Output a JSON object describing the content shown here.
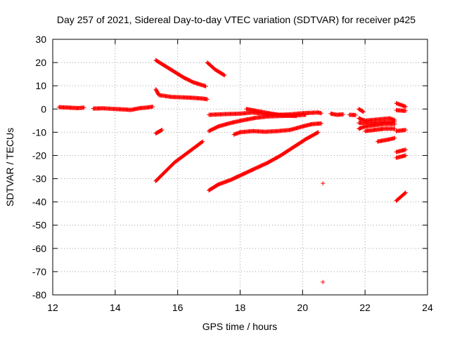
{
  "chart_data": {
    "type": "scatter",
    "title": "Day 257 of 2021, Sidereal Day-to-day VTEC variation (SDTVAR) for receiver p425",
    "xlabel": "GPS time / hours",
    "ylabel": "SDTVAR / TECUs",
    "xlim": [
      12,
      24
    ],
    "ylim": [
      -80,
      30
    ],
    "x_ticks": [
      12,
      14,
      16,
      18,
      20,
      22,
      24
    ],
    "y_ticks": [
      30,
      20,
      10,
      0,
      -10,
      -20,
      -30,
      -40,
      -50,
      -60,
      -70,
      -80
    ],
    "x_tick_labels": [
      "12",
      "14",
      "16",
      "18",
      "20",
      "22",
      "24"
    ],
    "y_tick_labels": [
      "30",
      "20",
      "10",
      "0",
      "-10",
      "-20",
      "-30",
      "-40",
      "-50",
      "-60",
      "-70",
      "-80"
    ],
    "grid": true,
    "marker": "+",
    "marker_color": "#ff0000",
    "series": [
      {
        "values": [
          [
            12.2,
            0.8
          ],
          [
            12.5,
            0.6
          ],
          [
            12.8,
            0.4
          ],
          [
            13.0,
            0.6
          ]
        ]
      },
      {
        "values": [
          [
            13.3,
            0.2
          ],
          [
            13.6,
            0.3
          ],
          [
            14.0,
            0.0
          ],
          [
            14.3,
            -0.2
          ],
          [
            14.5,
            -0.4
          ],
          [
            14.8,
            0.4
          ],
          [
            15.0,
            0.6
          ],
          [
            15.2,
            1.0
          ]
        ]
      },
      {
        "values": [
          [
            15.3,
            -31.0
          ],
          [
            15.6,
            -27.0
          ],
          [
            15.9,
            -23.0
          ],
          [
            16.2,
            -20.0
          ],
          [
            16.5,
            -17.0
          ],
          [
            16.8,
            -14.0
          ]
        ]
      },
      {
        "values": [
          [
            15.3,
            21.0
          ],
          [
            15.6,
            18.5
          ],
          [
            15.9,
            16.0
          ],
          [
            16.2,
            13.5
          ],
          [
            16.5,
            11.5
          ],
          [
            16.9,
            9.8
          ]
        ]
      },
      {
        "values": [
          [
            15.3,
            8.5
          ],
          [
            15.4,
            6.0
          ],
          [
            15.8,
            5.2
          ],
          [
            16.2,
            5.0
          ],
          [
            16.5,
            4.8
          ],
          [
            16.8,
            4.5
          ],
          [
            16.95,
            4.2
          ]
        ]
      },
      {
        "values": [
          [
            15.3,
            -10.5
          ],
          [
            15.5,
            -9.0
          ]
        ]
      },
      {
        "values": [
          [
            16.95,
            20.0
          ],
          [
            17.2,
            17.0
          ],
          [
            17.5,
            14.5
          ]
        ]
      },
      {
        "values": [
          [
            17.0,
            -35.0
          ],
          [
            17.3,
            -32.5
          ],
          [
            17.7,
            -30.5
          ],
          [
            18.1,
            -28.0
          ],
          [
            18.5,
            -25.5
          ],
          [
            18.9,
            -23.0
          ],
          [
            19.3,
            -20.0
          ],
          [
            19.7,
            -16.5
          ],
          [
            20.1,
            -13.0
          ],
          [
            20.5,
            -10.0
          ]
        ]
      },
      {
        "values": [
          [
            17.0,
            -9.5
          ],
          [
            17.3,
            -7.5
          ],
          [
            17.7,
            -6.0
          ],
          [
            18.1,
            -4.8
          ],
          [
            18.5,
            -3.8
          ],
          [
            18.9,
            -3.2
          ],
          [
            19.3,
            -3.0
          ],
          [
            19.7,
            -2.8
          ],
          [
            20.1,
            -2.5
          ]
        ]
      },
      {
        "values": [
          [
            17.0,
            -2.5
          ],
          [
            17.5,
            -2.2
          ],
          [
            18.0,
            -2.0
          ],
          [
            18.4,
            -1.5
          ],
          [
            18.8,
            -2.2
          ],
          [
            19.2,
            -2.5
          ],
          [
            19.6,
            -2.3
          ],
          [
            20.0,
            -1.8
          ],
          [
            20.5,
            -1.5
          ],
          [
            20.6,
            -1.8
          ]
        ]
      },
      {
        "values": [
          [
            18.2,
            0.0
          ],
          [
            18.6,
            -1.0
          ],
          [
            19.0,
            -2.0
          ],
          [
            19.4,
            -2.8
          ],
          [
            19.8,
            -3.0
          ]
        ]
      },
      {
        "values": [
          [
            17.8,
            -11.0
          ],
          [
            18.0,
            -10.0
          ],
          [
            18.4,
            -9.5
          ],
          [
            18.8,
            -9.8
          ],
          [
            19.2,
            -9.5
          ],
          [
            19.6,
            -9.0
          ],
          [
            20.0,
            -7.5
          ],
          [
            20.3,
            -6.5
          ],
          [
            20.6,
            -6.2
          ]
        ]
      },
      {
        "values": [
          [
            20.65,
            -32.0
          ]
        ]
      },
      {
        "values": [
          [
            20.65,
            -74.5
          ]
        ]
      },
      {
        "values": [
          [
            20.9,
            -2.0
          ],
          [
            21.1,
            -2.5
          ],
          [
            21.3,
            -2.3
          ]
        ]
      },
      {
        "values": [
          [
            21.5,
            -2.5
          ],
          [
            21.7,
            -2.6
          ]
        ]
      },
      {
        "values": [
          [
            21.8,
            0.0
          ],
          [
            21.95,
            -1.2
          ]
        ]
      },
      {
        "values": [
          [
            21.8,
            -4.0
          ],
          [
            22.0,
            -5.0
          ],
          [
            22.4,
            -4.5
          ],
          [
            22.8,
            -4.0
          ],
          [
            22.95,
            -4.8
          ]
        ]
      },
      {
        "values": [
          [
            21.8,
            -6.0
          ],
          [
            22.0,
            -6.0
          ],
          [
            22.4,
            -5.8
          ],
          [
            22.8,
            -5.5
          ],
          [
            22.95,
            -5.6
          ]
        ]
      },
      {
        "values": [
          [
            21.8,
            -8.5
          ],
          [
            22.0,
            -7.5
          ],
          [
            22.3,
            -7.0
          ],
          [
            22.6,
            -6.5
          ],
          [
            22.95,
            -6.5
          ]
        ]
      },
      {
        "values": [
          [
            22.0,
            -9.5
          ],
          [
            22.3,
            -9.0
          ],
          [
            22.6,
            -8.5
          ],
          [
            22.95,
            -8.5
          ]
        ]
      },
      {
        "values": [
          [
            22.4,
            -14.0
          ],
          [
            22.6,
            -13.5
          ],
          [
            22.8,
            -13.0
          ],
          [
            22.95,
            -12.5
          ]
        ]
      },
      {
        "values": [
          [
            23.0,
            2.5
          ],
          [
            23.3,
            1.0
          ]
        ]
      },
      {
        "values": [
          [
            23.0,
            -0.5
          ],
          [
            23.3,
            -0.8
          ]
        ]
      },
      {
        "values": [
          [
            23.0,
            -9.5
          ],
          [
            23.3,
            -9.0
          ]
        ]
      },
      {
        "values": [
          [
            23.0,
            -18.5
          ],
          [
            23.3,
            -17.5
          ]
        ]
      },
      {
        "values": [
          [
            23.0,
            -21.0
          ],
          [
            23.3,
            -20.0
          ]
        ]
      },
      {
        "values": [
          [
            23.0,
            -39.5
          ],
          [
            23.3,
            -36.0
          ]
        ]
      }
    ]
  }
}
